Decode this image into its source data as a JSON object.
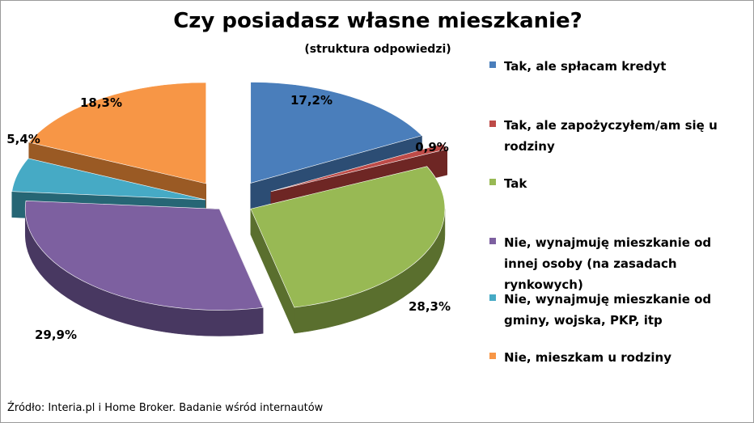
{
  "chart_data": {
    "type": "pie",
    "title": "Czy posiadasz własne mieszkanie?",
    "subtitle": "(struktura odpowiedzi)",
    "categories": [
      "Tak, ale spłacam kredyt",
      "Tak, ale zapożyczyłem/am się u rodziny",
      "Tak",
      "Nie, wynajmuję mieszkanie od innej osoby (na zasadach rynkowych)",
      "Nie, wynajmuję mieszkanie od gminy, wojska, PKP, itp",
      "Nie, mieszkam u rodziny"
    ],
    "values": [
      17.2,
      0.9,
      28.3,
      29.9,
      5.4,
      18.3
    ],
    "value_labels": [
      "17,2%",
      "0,9%",
      "28,3%",
      "29,9%",
      "5,4%",
      "18,3%"
    ],
    "colors": [
      "#4a7ebb",
      "#be4b48",
      "#98b954",
      "#7d60a0",
      "#46aac5",
      "#f79646"
    ],
    "side_colors": [
      "#2c4d74",
      "#6e2624",
      "#5a6f2e",
      "#483861",
      "#266675",
      "#9a5a24"
    ],
    "legend_position": "right",
    "style": "3d-exploded"
  },
  "source_note": "Źródło: Interia.pl i Home Broker. Badanie wśród internautów"
}
